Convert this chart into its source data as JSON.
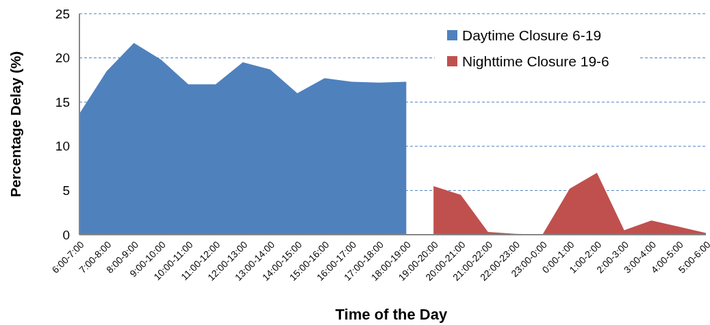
{
  "chart_data": {
    "type": "area",
    "xlabel": "Time of the Day",
    "ylabel": "Percentage Delay (%)",
    "categories": [
      "6:00-7:00",
      "7:00-8:00",
      "8:00-9:00",
      "9:00-10:00",
      "10:00-11:00",
      "11:00-12:00",
      "12:00-13:00",
      "13:00-14:00",
      "14:00-15:00",
      "15:00-16:00",
      "16:00-17:00",
      "17:00-18:00",
      "18:00-19:00",
      "19:00-20:00",
      "20:00-21:00",
      "21:00-22:00",
      "22:00-23:00",
      "23:00-0:00",
      "0:00-1:00",
      "1:00-2:00",
      "2:00-3:00",
      "3:00-4:00",
      "4:00-5:00",
      "5:00-6:00"
    ],
    "series": [
      {
        "name": "Daytime Closure 6-19",
        "color": "#4f81bd",
        "values": [
          13.7,
          18.5,
          21.7,
          19.8,
          17.0,
          17.0,
          19.5,
          18.7,
          16.0,
          17.7,
          17.3,
          17.2,
          17.3,
          null,
          null,
          null,
          null,
          null,
          null,
          null,
          null,
          null,
          null,
          null
        ]
      },
      {
        "name": "Nighttime Closure 19-6",
        "color": "#c0504d",
        "values": [
          null,
          null,
          null,
          null,
          null,
          null,
          null,
          null,
          null,
          null,
          null,
          null,
          null,
          5.5,
          4.5,
          0.3,
          0.1,
          0,
          5.2,
          7.0,
          0.5,
          1.6,
          0.9,
          0.2
        ]
      }
    ],
    "ylim": [
      0,
      25
    ],
    "yticks": [
      0,
      5,
      10,
      15,
      20,
      25
    ],
    "grid": "y",
    "legend": "top right"
  }
}
